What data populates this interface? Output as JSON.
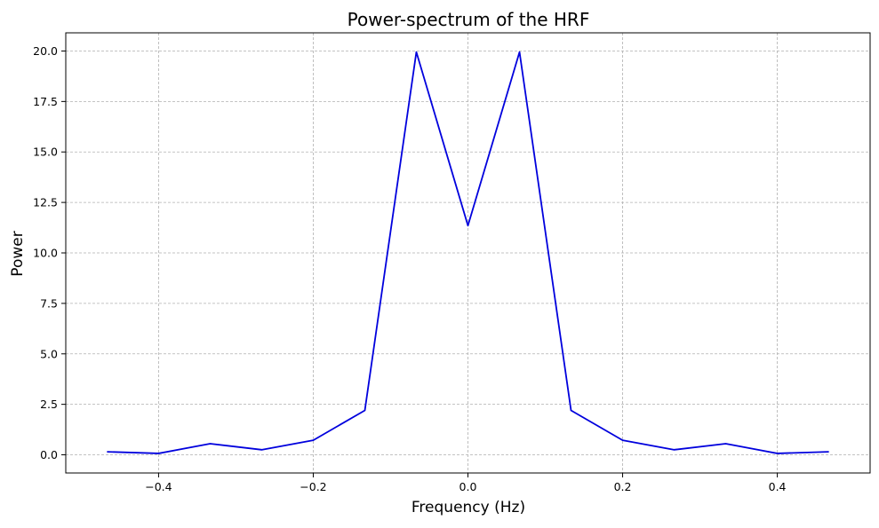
{
  "chart_data": {
    "type": "line",
    "title": "Power-spectrum of the HRF",
    "xlabel": "Frequency (Hz)",
    "ylabel": "Power",
    "xlim": [
      -0.52,
      0.52
    ],
    "ylim": [
      -0.9,
      20.9
    ],
    "xticks": [
      -0.4,
      -0.2,
      0.0,
      0.2,
      0.4
    ],
    "xtick_labels": [
      "−0.4",
      "−0.2",
      "0.0",
      "0.2",
      "0.4"
    ],
    "yticks": [
      0.0,
      2.5,
      5.0,
      7.5,
      10.0,
      12.5,
      15.0,
      17.5,
      20.0
    ],
    "ytick_labels": [
      "0.0",
      "2.5",
      "5.0",
      "7.5",
      "10.0",
      "12.5",
      "15.0",
      "17.5",
      "20.0"
    ],
    "grid": true,
    "series": [
      {
        "color": "#0000dd",
        "x": [
          -0.4667,
          -0.4,
          -0.3333,
          -0.2667,
          -0.2,
          -0.1333,
          -0.0667,
          0.0,
          0.0667,
          0.1333,
          0.2,
          0.2667,
          0.3333,
          0.4,
          0.4667
        ],
        "y": [
          0.15,
          0.07,
          0.55,
          0.25,
          0.72,
          2.2,
          19.95,
          11.35,
          19.95,
          2.2,
          0.72,
          0.25,
          0.55,
          0.07,
          0.15
        ]
      }
    ]
  }
}
